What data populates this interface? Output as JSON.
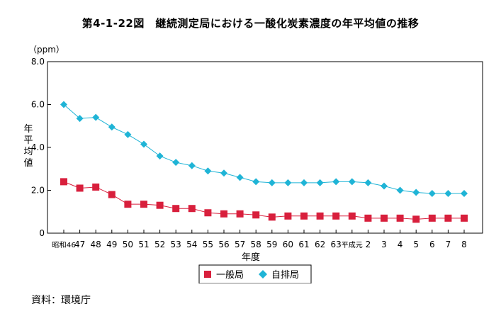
{
  "page_title": "第4-1-22図　継続測定局における一酸化炭素濃度の年平均値の推移",
  "source": {
    "label": "資料",
    "separator": "：",
    "value": "環境庁"
  },
  "chart_data": {
    "type": "line",
    "title": "第4-1-22図　継続測定局における一酸化炭素濃度の年平均値の推移",
    "unit_label": "（ppm）",
    "ylabel": "年平均値",
    "xlabel": "年度",
    "ylim": [
      0,
      8
    ],
    "yticks": [
      "0",
      "2.0",
      "4.0",
      "6.0",
      "8.0"
    ],
    "ytick_values": [
      0,
      2,
      4,
      6,
      8
    ],
    "grid": false,
    "legend_position": "bottom-center",
    "categories": [
      "昭和46",
      "47",
      "48",
      "49",
      "50",
      "51",
      "52",
      "53",
      "54",
      "55",
      "56",
      "57",
      "58",
      "59",
      "60",
      "61",
      "62",
      "63",
      "平成元",
      "2",
      "3",
      "4",
      "5",
      "6",
      "7",
      "8"
    ],
    "series": [
      {
        "name": "一般局",
        "color": "#d81f3c",
        "marker": "square",
        "values": [
          2.4,
          2.1,
          2.15,
          1.8,
          1.35,
          1.35,
          1.3,
          1.15,
          1.15,
          0.95,
          0.9,
          0.9,
          0.85,
          0.75,
          0.8,
          0.8,
          0.8,
          0.8,
          0.8,
          0.7,
          0.7,
          0.7,
          0.65,
          0.7,
          0.7,
          0.7
        ]
      },
      {
        "name": "自排局",
        "color": "#1fb4d6",
        "marker": "diamond",
        "values": [
          6.0,
          5.35,
          5.4,
          4.95,
          4.6,
          4.15,
          3.6,
          3.3,
          3.15,
          2.9,
          2.8,
          2.6,
          2.4,
          2.35,
          2.35,
          2.35,
          2.35,
          2.4,
          2.4,
          2.35,
          2.2,
          2.0,
          1.9,
          1.85,
          1.85,
          1.85
        ]
      }
    ]
  }
}
